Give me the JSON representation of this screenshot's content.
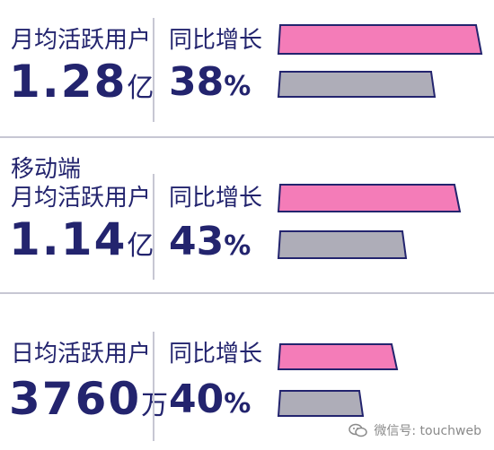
{
  "sections": [
    {
      "title_line1": "",
      "title_line2": "月均活跃用户",
      "value": "1.28",
      "unit": "亿",
      "growth_label": "同比增长",
      "growth_value": "38",
      "growth_unit": "%"
    },
    {
      "title_line1": "移动端",
      "title_line2": "月均活跃用户",
      "value": "1.14",
      "unit": "亿",
      "growth_label": "同比增长",
      "growth_value": "43",
      "growth_unit": "%"
    },
    {
      "title_line1": "",
      "title_line2": "日均活跃用户",
      "value": "3760",
      "unit": "万",
      "growth_label": "同比增长",
      "growth_value": "40",
      "growth_unit": "%"
    }
  ],
  "colors": {
    "pink": "#f47cb8",
    "gray": "#aeadb8",
    "navy": "#23246e",
    "divider": "#c7c7d3"
  },
  "watermark": {
    "icon": "wechat-icon",
    "text": "微信号: touchweb"
  },
  "chart_data": {
    "type": "bar",
    "categories": [
      "月均活跃用户",
      "移动端月均活跃用户",
      "日均活跃用户"
    ],
    "series": [
      {
        "values": [
          1.0,
          1.0,
          1.0
        ]
      },
      {
        "values": [
          0.72,
          0.7,
          0.71
        ]
      }
    ],
    "annotations": [
      "1.28亿",
      "38%",
      "1.14亿",
      "43%",
      "3760万",
      "40%"
    ]
  }
}
